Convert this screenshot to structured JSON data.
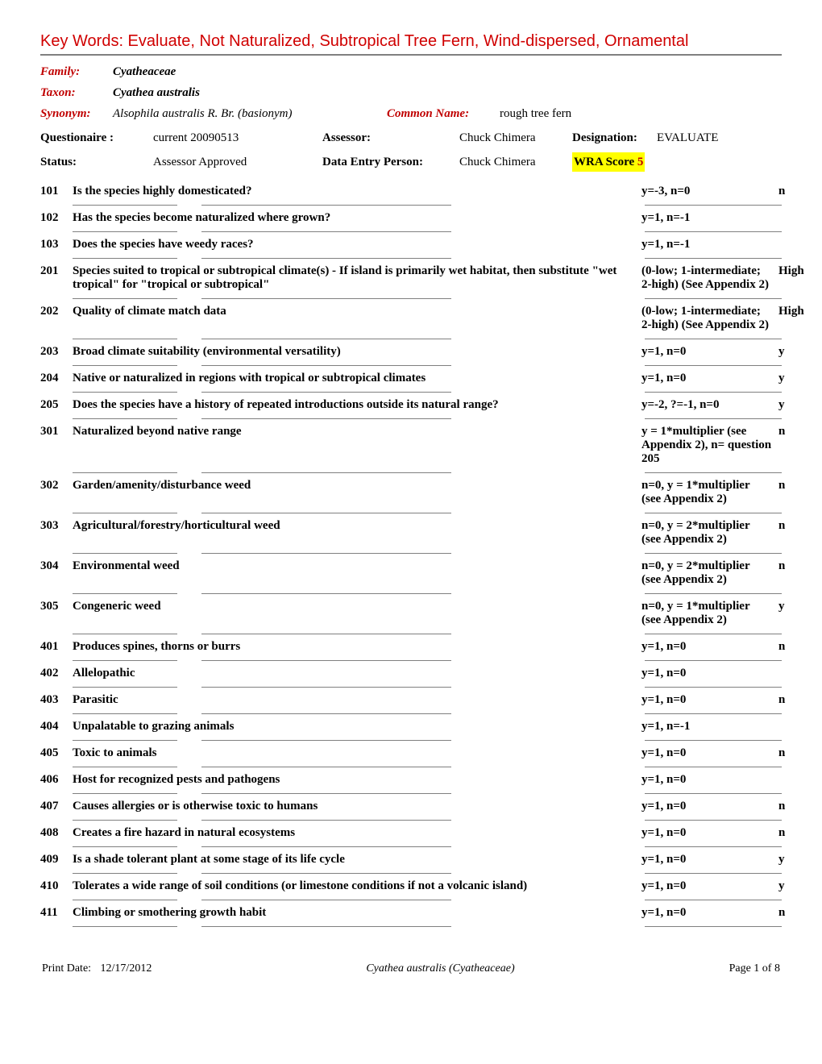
{
  "colors": {
    "title_color": "#d00000",
    "label_color": "#c00000",
    "divider_color": "#808080",
    "highlight_bg": "#ffff00",
    "background": "#ffffff"
  },
  "title": "Key Words: Evaluate, Not Naturalized, Subtropical Tree Fern, Wind-dispersed, Ornamental",
  "header": {
    "family_label": "Family:",
    "family_value": "Cyatheaceae",
    "taxon_label": "Taxon:",
    "taxon_value": "Cyathea australis",
    "synonym_label": "Synonym:",
    "synonym_value": "Alsophila australis R. Br. (basionym)",
    "common_name_label": "Common Name:",
    "common_name_value": "rough tree fern"
  },
  "meta": {
    "questionaire_label": "Questionaire :",
    "questionaire_value": "current 20090513",
    "status_label": "Status:",
    "status_value": "Assessor Approved",
    "assessor_label": "Assessor:",
    "assessor_value": "Chuck Chimera",
    "data_entry_label": "Data Entry Person:",
    "data_entry_value": "Chuck Chimera",
    "designation_label": "Designation:",
    "designation_value": "EVALUATE",
    "wra_score_label": "WRA Score",
    "wra_score_value": "5"
  },
  "questions": [
    {
      "num": "101",
      "text": "Is the species highly domesticated?",
      "score": "y=-3, n=0",
      "ans": "n"
    },
    {
      "num": "102",
      "text": "Has the species become naturalized where grown?",
      "score": "y=1, n=-1",
      "ans": ""
    },
    {
      "num": "103",
      "text": "Does the species have weedy races?",
      "score": "y=1, n=-1",
      "ans": ""
    },
    {
      "num": "201",
      "text": "Species suited to tropical or subtropical climate(s) - If island is primarily wet habitat, then substitute \"wet tropical\" for \"tropical or subtropical\"",
      "score": "(0-low; 1-intermediate; 2-high)  (See Appendix 2)",
      "ans": "High"
    },
    {
      "num": "202",
      "text": "Quality of climate match data",
      "score": "(0-low; 1-intermediate; 2-high)  (See Appendix 2)",
      "ans": "High"
    },
    {
      "num": "203",
      "text": "Broad climate suitability (environmental versatility)",
      "score": "y=1, n=0",
      "ans": "y"
    },
    {
      "num": "204",
      "text": "Native or naturalized in regions with tropical or subtropical climates",
      "score": "y=1, n=0",
      "ans": "y"
    },
    {
      "num": "205",
      "text": "Does the species have a history of repeated introductions outside its natural range?",
      "score": "y=-2, ?=-1, n=0",
      "ans": "y"
    },
    {
      "num": "301",
      "text": "Naturalized beyond native range",
      "score": "y = 1*multiplier (see Appendix 2), n= question 205",
      "ans": "n"
    },
    {
      "num": "302",
      "text": "Garden/amenity/disturbance weed",
      "score": "n=0, y = 1*multiplier (see Appendix 2)",
      "ans": "n"
    },
    {
      "num": "303",
      "text": "Agricultural/forestry/horticultural weed",
      "score": "n=0, y = 2*multiplier (see Appendix 2)",
      "ans": "n"
    },
    {
      "num": "304",
      "text": "Environmental weed",
      "score": "n=0, y = 2*multiplier (see Appendix 2)",
      "ans": "n"
    },
    {
      "num": "305",
      "text": "Congeneric weed",
      "score": "n=0, y = 1*multiplier (see Appendix 2)",
      "ans": "y"
    },
    {
      "num": "401",
      "text": "Produces spines, thorns or burrs",
      "score": "y=1, n=0",
      "ans": "n"
    },
    {
      "num": "402",
      "text": "Allelopathic",
      "score": "y=1, n=0",
      "ans": ""
    },
    {
      "num": "403",
      "text": "Parasitic",
      "score": "y=1, n=0",
      "ans": "n"
    },
    {
      "num": "404",
      "text": "Unpalatable to grazing animals",
      "score": "y=1, n=-1",
      "ans": ""
    },
    {
      "num": "405",
      "text": "Toxic to animals",
      "score": "y=1, n=0",
      "ans": "n"
    },
    {
      "num": "406",
      "text": "Host for recognized pests and pathogens",
      "score": "y=1, n=0",
      "ans": ""
    },
    {
      "num": "407",
      "text": "Causes allergies or is otherwise toxic to humans",
      "score": "y=1, n=0",
      "ans": "n"
    },
    {
      "num": "408",
      "text": "Creates a fire hazard in natural ecosystems",
      "score": "y=1, n=0",
      "ans": "n"
    },
    {
      "num": "409",
      "text": "Is a shade tolerant plant at some stage of its life cycle",
      "score": "y=1, n=0",
      "ans": "y"
    },
    {
      "num": "410",
      "text": "Tolerates a wide range of soil conditions (or limestone conditions if not a volcanic island)",
      "score": "y=1, n=0",
      "ans": "y"
    },
    {
      "num": "411",
      "text": "Climbing or smothering growth habit",
      "score": "y=1, n=0",
      "ans": "n"
    }
  ],
  "footer": {
    "print_date_label": "Print Date:",
    "print_date_value": "12/17/2012",
    "center": "Cyathea australis (Cyatheaceae)",
    "page_label": "Page 1 of 8"
  }
}
